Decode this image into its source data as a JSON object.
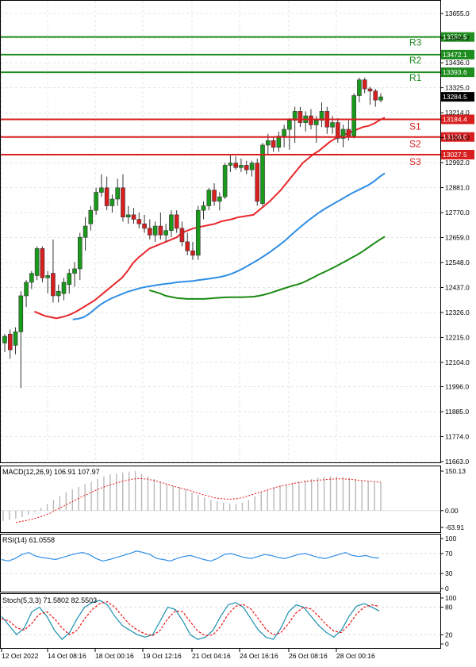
{
  "chart_data": {
    "type": "candlestick",
    "main": {
      "price_axis": {
        "min": 11663.0,
        "max": 13655.0,
        "ticks": [
          "13655.0",
          "13546.2",
          "13436.0",
          "13325.0",
          "13214.0",
          "13103.0",
          "12992.0",
          "12881.0",
          "12770.0",
          "12659.0",
          "12548.0",
          "12437.0",
          "12326.0",
          "12215.0",
          "12104.0",
          "11996.0",
          "11885.0",
          "11774.0",
          "11663.0"
        ]
      },
      "current_price": "13284.5",
      "levels": [
        {
          "name": "R3",
          "value": 13550.5,
          "label": "13550.5",
          "kind": "resistance"
        },
        {
          "name": "R2",
          "value": 13472.1,
          "label": "13472.1",
          "kind": "resistance"
        },
        {
          "name": "R1",
          "value": 13393.6,
          "label": "13393.6",
          "kind": "resistance"
        },
        {
          "name": "S1",
          "value": 13184.4,
          "label": "13184.4",
          "kind": "support"
        },
        {
          "name": "S2",
          "value": 13106.0,
          "label": "13106.0",
          "kind": "support"
        },
        {
          "name": "S3",
          "value": 13027.5,
          "label": "13027.5",
          "kind": "support"
        }
      ],
      "candles": [
        {
          "o": 12190,
          "h": 12230,
          "l": 12150,
          "c": 12220
        },
        {
          "o": 12230,
          "h": 12250,
          "l": 12120,
          "c": 12160
        },
        {
          "o": 12180,
          "h": 12260,
          "l": 12140,
          "c": 12240
        },
        {
          "o": 12240,
          "h": 12420,
          "l": 11990,
          "c": 12400
        },
        {
          "o": 12400,
          "h": 12470,
          "l": 12350,
          "c": 12460
        },
        {
          "o": 12460,
          "h": 12510,
          "l": 12430,
          "c": 12500
        },
        {
          "o": 12490,
          "h": 12620,
          "l": 12470,
          "c": 12610
        },
        {
          "o": 12610,
          "h": 12620,
          "l": 12460,
          "c": 12480
        },
        {
          "o": 12480,
          "h": 12510,
          "l": 12410,
          "c": 12490
        },
        {
          "o": 12500,
          "h": 12650,
          "l": 12370,
          "c": 12400
        },
        {
          "o": 12400,
          "h": 12450,
          "l": 12370,
          "c": 12420
        },
        {
          "o": 12410,
          "h": 12480,
          "l": 12380,
          "c": 12460
        },
        {
          "o": 12450,
          "h": 12520,
          "l": 12410,
          "c": 12500
        },
        {
          "o": 12500,
          "h": 12550,
          "l": 12440,
          "c": 12520
        },
        {
          "o": 12520,
          "h": 12680,
          "l": 12470,
          "c": 12660
        },
        {
          "o": 12660,
          "h": 12750,
          "l": 12600,
          "c": 12710
        },
        {
          "o": 12720,
          "h": 12800,
          "l": 12690,
          "c": 12780
        },
        {
          "o": 12780,
          "h": 12880,
          "l": 12760,
          "c": 12860
        },
        {
          "o": 12860,
          "h": 12940,
          "l": 12840,
          "c": 12880
        },
        {
          "o": 12880,
          "h": 12930,
          "l": 12780,
          "c": 12800
        },
        {
          "o": 12800,
          "h": 12850,
          "l": 12770,
          "c": 12830
        },
        {
          "o": 12830,
          "h": 12920,
          "l": 12800,
          "c": 12880
        },
        {
          "o": 12880,
          "h": 12940,
          "l": 12730,
          "c": 12750
        },
        {
          "o": 12750,
          "h": 12800,
          "l": 12720,
          "c": 12760
        },
        {
          "o": 12760,
          "h": 12790,
          "l": 12720,
          "c": 12740
        },
        {
          "o": 12740,
          "h": 12770,
          "l": 12700,
          "c": 12720
        },
        {
          "o": 12720,
          "h": 12760,
          "l": 12680,
          "c": 12700
        },
        {
          "o": 12700,
          "h": 12740,
          "l": 12650,
          "c": 12670
        },
        {
          "o": 12670,
          "h": 12730,
          "l": 12640,
          "c": 12710
        },
        {
          "o": 12710,
          "h": 12770,
          "l": 12650,
          "c": 12670
        },
        {
          "o": 12670,
          "h": 12720,
          "l": 12640,
          "c": 12690
        },
        {
          "o": 12690,
          "h": 12780,
          "l": 12660,
          "c": 12760
        },
        {
          "o": 12760,
          "h": 12780,
          "l": 12680,
          "c": 12700
        },
        {
          "o": 12700,
          "h": 12730,
          "l": 12620,
          "c": 12640
        },
        {
          "o": 12640,
          "h": 12680,
          "l": 12580,
          "c": 12600
        },
        {
          "o": 12600,
          "h": 12640,
          "l": 12560,
          "c": 12580
        },
        {
          "o": 12580,
          "h": 12800,
          "l": 12560,
          "c": 12780
        },
        {
          "o": 12780,
          "h": 12820,
          "l": 12740,
          "c": 12800
        },
        {
          "o": 12800,
          "h": 12880,
          "l": 12780,
          "c": 12870
        },
        {
          "o": 12870,
          "h": 12900,
          "l": 12800,
          "c": 12820
        },
        {
          "o": 12820,
          "h": 12860,
          "l": 12780,
          "c": 12840
        },
        {
          "o": 12840,
          "h": 12990,
          "l": 12830,
          "c": 12980
        },
        {
          "o": 12980,
          "h": 13030,
          "l": 12950,
          "c": 12990
        },
        {
          "o": 12990,
          "h": 13020,
          "l": 12960,
          "c": 12970
        },
        {
          "o": 12970,
          "h": 13010,
          "l": 12950,
          "c": 12980
        },
        {
          "o": 12980,
          "h": 13000,
          "l": 12940,
          "c": 12960
        },
        {
          "o": 12960,
          "h": 13000,
          "l": 12930,
          "c": 12990
        },
        {
          "o": 12990,
          "h": 13010,
          "l": 12800,
          "c": 12820
        },
        {
          "o": 12810,
          "h": 13080,
          "l": 12800,
          "c": 13070
        },
        {
          "o": 13070,
          "h": 13120,
          "l": 13030,
          "c": 13090
        },
        {
          "o": 13090,
          "h": 13110,
          "l": 13040,
          "c": 13060
        },
        {
          "o": 13060,
          "h": 13130,
          "l": 13040,
          "c": 13110
        },
        {
          "o": 13110,
          "h": 13160,
          "l": 13060,
          "c": 13140
        },
        {
          "o": 13140,
          "h": 13190,
          "l": 13050,
          "c": 13180
        },
        {
          "o": 13180,
          "h": 13240,
          "l": 13080,
          "c": 13220
        },
        {
          "o": 13220,
          "h": 13240,
          "l": 13150,
          "c": 13170
        },
        {
          "o": 13170,
          "h": 13220,
          "l": 13130,
          "c": 13200
        },
        {
          "o": 13200,
          "h": 13230,
          "l": 13140,
          "c": 13160
        },
        {
          "o": 13160,
          "h": 13200,
          "l": 13080,
          "c": 13180
        },
        {
          "o": 13180,
          "h": 13260,
          "l": 13150,
          "c": 13220
        },
        {
          "o": 13220,
          "h": 13240,
          "l": 13120,
          "c": 13150
        },
        {
          "o": 13150,
          "h": 13200,
          "l": 13120,
          "c": 13170
        },
        {
          "o": 13170,
          "h": 13190,
          "l": 13080,
          "c": 13100
        },
        {
          "o": 13100,
          "h": 13160,
          "l": 13060,
          "c": 13140
        },
        {
          "o": 13140,
          "h": 13180,
          "l": 13090,
          "c": 13110
        },
        {
          "o": 13110,
          "h": 13300,
          "l": 13100,
          "c": 13290
        },
        {
          "o": 13290,
          "h": 13370,
          "l": 13260,
          "c": 13360
        },
        {
          "o": 13360,
          "h": 13370,
          "l": 13300,
          "c": 13320
        },
        {
          "o": 13320,
          "h": 13330,
          "l": 13250,
          "c": 13310
        },
        {
          "o": 13310,
          "h": 13320,
          "l": 13240,
          "c": 13270
        },
        {
          "o": 13270,
          "h": 13300,
          "l": 13260,
          "c": 13284.5
        }
      ],
      "moving_averages": [
        {
          "color": "#e8272a",
          "points": [
            12330,
            12320,
            12310,
            12305,
            12300,
            12305,
            12312,
            12322,
            12335,
            12350,
            12365,
            12380,
            12400,
            12420,
            12440,
            12460,
            12480,
            12510,
            12545,
            12570,
            12590,
            12610,
            12620,
            12630,
            12640,
            12650,
            12660,
            12680,
            12690,
            12700,
            12705,
            12710,
            12715,
            12720,
            12730,
            12735,
            12740,
            12748,
            12752,
            12756,
            12760,
            12780,
            12800,
            12820,
            12845,
            12870,
            12900,
            12930,
            12960,
            12990,
            13010,
            13030,
            13045,
            13065,
            13085,
            13100,
            13110,
            13120,
            13130,
            13140,
            13150,
            13155,
            13165,
            13180,
            13192
          ]
        },
        {
          "color": "#2f8ee6",
          "points": [
            12295,
            12298,
            12305,
            12320,
            12340,
            12360,
            12375,
            12388,
            12398,
            12408,
            12418,
            12425,
            12432,
            12438,
            12442,
            12446,
            12450,
            12453,
            12456,
            12460,
            12462,
            12464,
            12466,
            12470,
            12473,
            12476,
            12480,
            12484,
            12490,
            12498,
            12508,
            12520,
            12534,
            12548,
            12562,
            12578,
            12594,
            12612,
            12630,
            12650,
            12672,
            12694,
            12714,
            12734,
            12752,
            12770,
            12786,
            12800,
            12814,
            12828,
            12842,
            12856,
            12868,
            12880,
            12892,
            12908,
            12928,
            12945
          ]
        },
        {
          "color": "#1a8a12",
          "points": [
            12425,
            12418,
            12410,
            12400,
            12395,
            12390,
            12388,
            12386,
            12386,
            12386,
            12386,
            12388,
            12390,
            12392,
            12393,
            12394,
            12394,
            12394,
            12395,
            12396,
            12400,
            12405,
            12412,
            12420,
            12428,
            12436,
            12444,
            12450,
            12458,
            12470,
            12482,
            12495,
            12506,
            12518,
            12530,
            12543,
            12556,
            12570,
            12583,
            12598,
            12615,
            12632,
            12648,
            12663
          ]
        }
      ],
      "x_ticks": [
        "12 Oct 2022",
        "14 Oct 08:16",
        "18 Oct 00:16",
        "19 Oct 12:16",
        "21 Oct 04:16",
        "24 Oct 16:16",
        "26 Oct 08:16",
        "28 Oct 00:16"
      ]
    },
    "macd": {
      "label": "MACD(12,26,9) 106.91 107.97",
      "axis_max": "150.13",
      "axis_zero": "0.00",
      "axis_min": "-63.91",
      "min": -63.91,
      "max": 150.13,
      "histogram": [
        -40,
        -35,
        -30,
        -25,
        -15,
        -5,
        10,
        25,
        40,
        55,
        70,
        80,
        90,
        100,
        110,
        120,
        130,
        138,
        140,
        145,
        148,
        150,
        140,
        130,
        120,
        110,
        100,
        95,
        90,
        80,
        70,
        60,
        50,
        40,
        35,
        30,
        25,
        25,
        30,
        40,
        55,
        70,
        80,
        90,
        95,
        100,
        105,
        110,
        115,
        120,
        125,
        128,
        130,
        130,
        128,
        125,
        120,
        115,
        112,
        110,
        107
      ],
      "signal": [
        -45,
        -40,
        -35,
        -28,
        -20,
        -10,
        5,
        18,
        32,
        45,
        58,
        70,
        82,
        92,
        100,
        108,
        115,
        120,
        122,
        120,
        115,
        108,
        100,
        92,
        85,
        78,
        70,
        62,
        55,
        48,
        45,
        43,
        45,
        50,
        58,
        66,
        74,
        82,
        90,
        96,
        102,
        106,
        110,
        113,
        116,
        118,
        120,
        121,
        120,
        118,
        115,
        112,
        110,
        108
      ]
    },
    "rsi": {
      "label": "RSI(14) 61.0558",
      "ticks": [
        "100",
        "70",
        "30",
        "0"
      ],
      "values": [
        58,
        55,
        60,
        68,
        72,
        65,
        62,
        60,
        58,
        62,
        66,
        70,
        72,
        68,
        60,
        55,
        58,
        62,
        66,
        70,
        75,
        72,
        68,
        60,
        58,
        55,
        60,
        64,
        66,
        62,
        58,
        55,
        60,
        68,
        70,
        66,
        62,
        60,
        64,
        68,
        66,
        62,
        60,
        64,
        68,
        70,
        66,
        62,
        60,
        64,
        68,
        72,
        66,
        64,
        66,
        62,
        61
      ]
    },
    "stoch": {
      "label": "Stoch(5,3,3) 71.5802 82.5503",
      "ticks": [
        "100",
        "80",
        "20",
        "0"
      ],
      "k": [
        60,
        40,
        20,
        35,
        70,
        80,
        60,
        30,
        10,
        25,
        55,
        80,
        90,
        95,
        85,
        60,
        40,
        30,
        20,
        15,
        20,
        50,
        80,
        75,
        50,
        20,
        10,
        15,
        30,
        60,
        85,
        90,
        80,
        55,
        30,
        15,
        10,
        35,
        70,
        85,
        80,
        60,
        40,
        25,
        15,
        30,
        60,
        82,
        88,
        80,
        72
      ],
      "d": [
        55,
        50,
        35,
        30,
        45,
        65,
        70,
        55,
        35,
        20,
        30,
        55,
        75,
        88,
        92,
        80,
        60,
        42,
        30,
        22,
        18,
        30,
        55,
        72,
        70,
        48,
        28,
        18,
        20,
        38,
        65,
        82,
        86,
        76,
        55,
        32,
        20,
        25,
        45,
        68,
        80,
        76,
        60,
        42,
        28,
        25,
        42,
        65,
        80,
        85,
        82
      ]
    }
  }
}
